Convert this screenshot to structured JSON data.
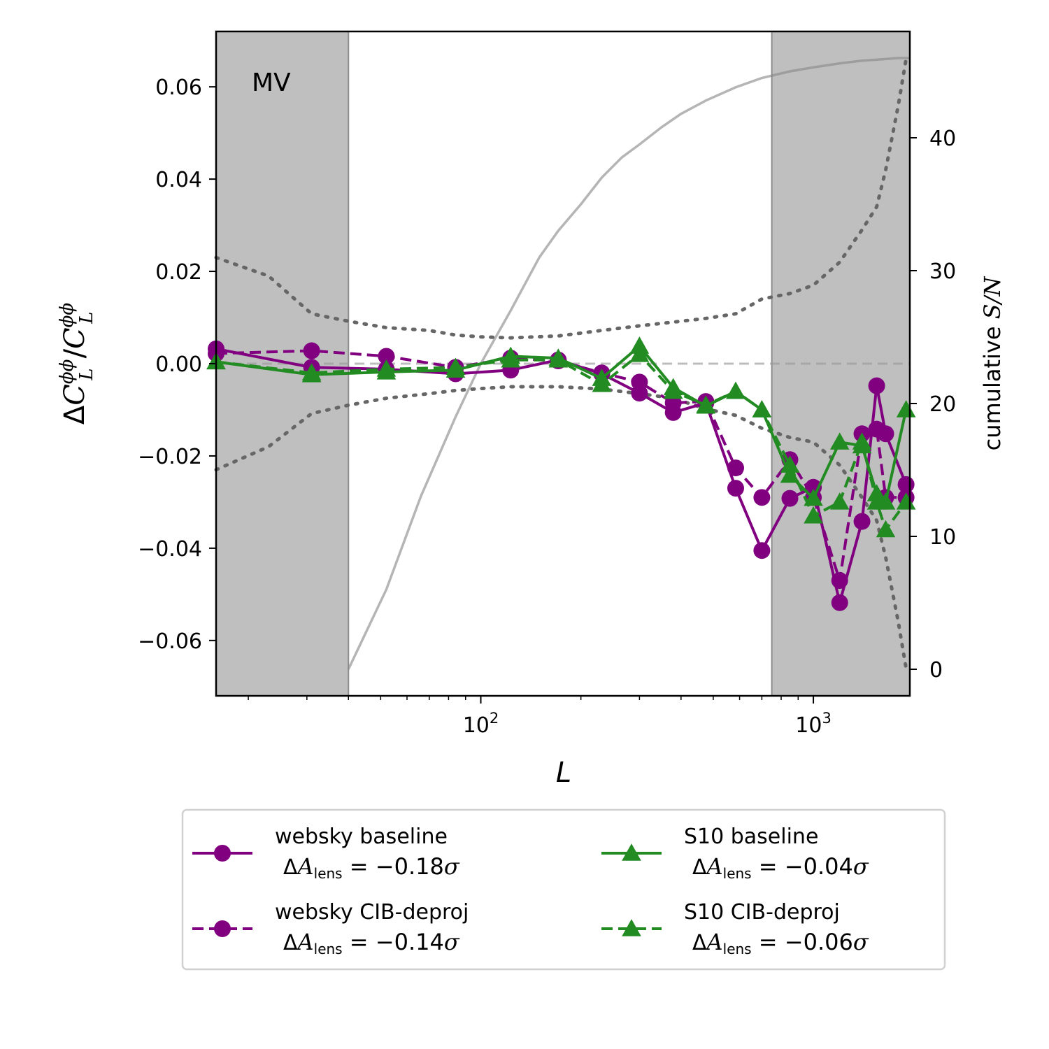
{
  "chart_data": {
    "type": "line",
    "panel_label": "MV",
    "xlabel": "L",
    "ylabel": "ΔC_L^φφ/C_L^φφ",
    "y2label": "cumulative S/N",
    "xscale": "log",
    "xlim": [
      16,
      1950
    ],
    "ylim": [
      -0.072,
      0.072
    ],
    "y2lim": [
      -2,
      48
    ],
    "xticks": [
      {
        "value": 100,
        "label": "10^2"
      },
      {
        "value": 1000,
        "label": "10^3"
      }
    ],
    "yticks": [
      {
        "value": 0.06,
        "label": "0.06"
      },
      {
        "value": 0.04,
        "label": "0.04"
      },
      {
        "value": 0.02,
        "label": "0.02"
      },
      {
        "value": 0.0,
        "label": "0.00"
      },
      {
        "value": -0.02,
        "label": "−0.02"
      },
      {
        "value": -0.04,
        "label": "−0.04"
      },
      {
        "value": -0.06,
        "label": "−0.06"
      }
    ],
    "y2ticks": [
      {
        "value": 0,
        "label": "0"
      },
      {
        "value": 10,
        "label": "10"
      },
      {
        "value": 20,
        "label": "20"
      },
      {
        "value": 30,
        "label": "30"
      },
      {
        "value": 40,
        "label": "40"
      }
    ],
    "excluded_ranges": [
      [
        16,
        40
      ],
      [
        750,
        1950
      ]
    ],
    "zero_line": 0,
    "series": [
      {
        "name": "websky baseline",
        "annotation": "ΔA_lens = −0.18σ",
        "color": "#800080",
        "marker": "circle",
        "dash": "solid",
        "x": [
          16,
          31,
          52,
          84,
          123,
          171,
          231,
          300,
          379,
          475,
          584,
          700,
          850,
          1000,
          1200,
          1400,
          1550,
          1650,
          1900
        ],
        "y": [
          0.0032,
          -0.0008,
          -0.0012,
          -0.0022,
          -0.0014,
          0.0008,
          -0.0022,
          -0.0064,
          -0.0106,
          -0.0085,
          -0.027,
          -0.0405,
          -0.0292,
          -0.0268,
          -0.0518,
          -0.0342,
          -0.0048,
          -0.0152,
          -0.0262
        ]
      },
      {
        "name": "websky CIB-deproj",
        "annotation": "ΔA_lens = −0.14σ",
        "color": "#800080",
        "marker": "circle",
        "dash": "dashed",
        "x": [
          16,
          31,
          52,
          84,
          123,
          171,
          231,
          300,
          379,
          475,
          584,
          700,
          850,
          1000,
          1200,
          1400,
          1550,
          1650,
          1900
        ],
        "y": [
          0.0022,
          0.0028,
          0.0016,
          -0.0008,
          0.0012,
          0.0006,
          -0.002,
          -0.004,
          -0.0085,
          -0.0082,
          -0.0226,
          -0.029,
          -0.0208,
          -0.029,
          -0.047,
          -0.0152,
          -0.0142,
          -0.029,
          -0.029
        ]
      },
      {
        "name": "S10 baseline",
        "annotation": "ΔA_lens = −0.04σ",
        "color": "#228b22",
        "marker": "triangle",
        "dash": "solid",
        "x": [
          16,
          31,
          52,
          84,
          123,
          171,
          231,
          300,
          379,
          475,
          584,
          700,
          850,
          1000,
          1200,
          1400,
          1550,
          1650,
          1900
        ],
        "y": [
          0.0004,
          -0.0024,
          -0.0018,
          -0.0014,
          0.0016,
          0.0012,
          -0.0032,
          0.0038,
          -0.0052,
          -0.0092,
          -0.006,
          -0.01,
          -0.0242,
          -0.0292,
          -0.017,
          -0.0178,
          -0.0282,
          -0.03,
          -0.01
        ]
      },
      {
        "name": "S10 CIB-deproj",
        "annotation": "ΔA_lens = −0.06σ",
        "color": "#228b22",
        "marker": "triangle",
        "dash": "dashed",
        "x": [
          16,
          31,
          52,
          84,
          123,
          171,
          231,
          300,
          379,
          475,
          584,
          700,
          850,
          1000,
          1200,
          1400,
          1550,
          1650,
          1900
        ],
        "y": [
          0.0004,
          -0.002,
          -0.0012,
          -0.0008,
          0.0008,
          0.0008,
          -0.0045,
          0.002,
          -0.006,
          -0.009,
          -0.006,
          -0.01,
          -0.022,
          -0.033,
          -0.03,
          -0.017,
          -0.03,
          -0.036,
          -0.03
        ]
      }
    ],
    "error_band": {
      "color": "#666666",
      "dash": "dotted",
      "x": [
        16,
        23,
        31,
        40,
        52,
        70,
        84,
        100,
        123,
        171,
        231,
        300,
        379,
        475,
        584,
        700,
        850,
        1000,
        1200,
        1400,
        1550,
        1650,
        1800,
        1900
      ],
      "upper": [
        0.023,
        0.019,
        0.0108,
        0.0092,
        0.0078,
        0.0072,
        0.0062,
        0.0058,
        0.0056,
        0.006,
        0.0072,
        0.0082,
        0.009,
        0.0098,
        0.0108,
        0.014,
        0.0152,
        0.017,
        0.022,
        0.029,
        0.034,
        0.042,
        0.056,
        0.066
      ],
      "lower": [
        -0.023,
        -0.018,
        -0.0108,
        -0.009,
        -0.0075,
        -0.0065,
        -0.0058,
        -0.0054,
        -0.005,
        -0.005,
        -0.0055,
        -0.0065,
        -0.0075,
        -0.0098,
        -0.0112,
        -0.014,
        -0.016,
        -0.017,
        -0.022,
        -0.029,
        -0.034,
        -0.042,
        -0.056,
        -0.066
      ]
    },
    "cumulative_sn": {
      "color": "#b0b0b0",
      "x": [
        40,
        52,
        66,
        84,
        100,
        123,
        150,
        171,
        200,
        231,
        265,
        300,
        350,
        400,
        475,
        584,
        700,
        850,
        1000,
        1200,
        1400,
        1600,
        1800,
        1950
      ],
      "y": [
        0,
        6,
        13,
        19,
        23,
        27,
        31,
        33,
        35,
        37,
        38.5,
        39.5,
        40.8,
        41.8,
        42.8,
        43.8,
        44.5,
        45.0,
        45.3,
        45.6,
        45.8,
        45.9,
        46.0,
        46.0
      ]
    },
    "legend": {
      "placement": "below",
      "columns": 2,
      "entries": [
        {
          "label": "websky baseline",
          "annotation": "ΔA_lens = −0.18σ"
        },
        {
          "label": "websky CIB-deproj",
          "annotation": "ΔA_lens = −0.14σ"
        },
        {
          "label": "S10 baseline",
          "annotation": "ΔA_lens = −0.04σ"
        },
        {
          "label": "S10 CIB-deproj",
          "annotation": "ΔA_lens = −0.06σ"
        }
      ]
    }
  }
}
